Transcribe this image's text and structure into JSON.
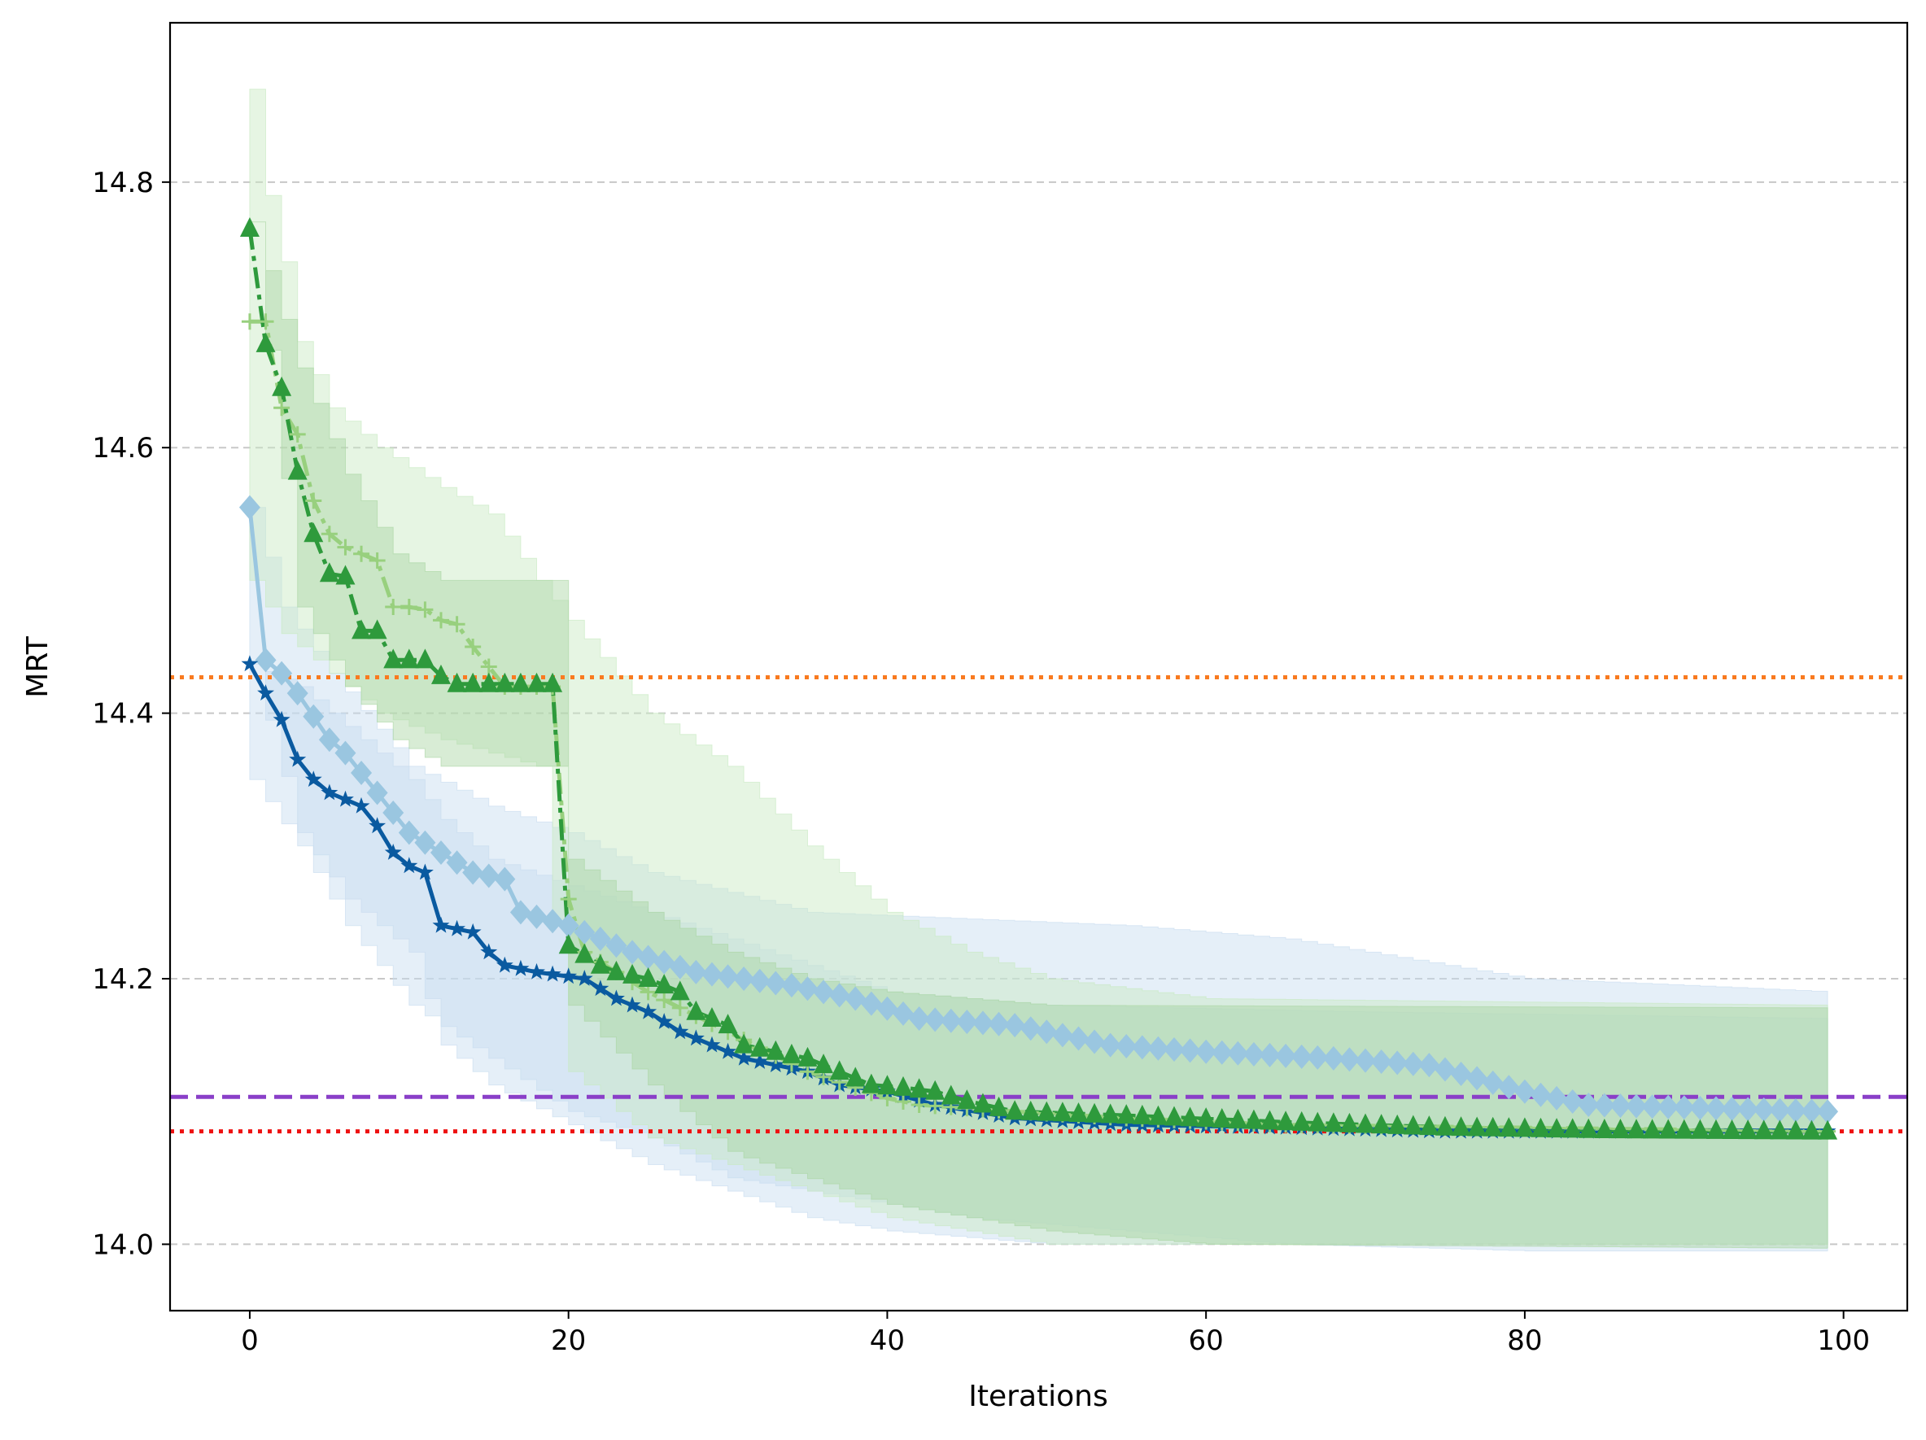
{
  "chart_data": {
    "type": "line",
    "title": "",
    "xlabel": "Iterations",
    "ylabel": "MRT",
    "xlim": [
      -5,
      104
    ],
    "ylim": [
      13.95,
      14.92
    ],
    "xticks": [
      0,
      20,
      40,
      60,
      80,
      100
    ],
    "yticks": [
      14.0,
      14.2,
      14.4,
      14.6,
      14.8
    ],
    "xtick_labels": [
      "0",
      "20",
      "40",
      "60",
      "80",
      "100"
    ],
    "ytick_labels": [
      "14.0",
      "14.2",
      "14.4",
      "14.6",
      "14.8"
    ],
    "grid": "horizontal dashed",
    "reference_lines": [
      {
        "name": "orange-dotted-reference",
        "y": 14.427,
        "color": "#f97a1f",
        "style": "dotted"
      },
      {
        "name": "purple-dashed-reference",
        "y": 14.111,
        "color": "#8a3fc8",
        "style": "dashed"
      },
      {
        "name": "red-dotted-reference",
        "y": 14.085,
        "color": "#ee1111",
        "style": "dotted"
      }
    ],
    "series": [
      {
        "name": "light-blue-diamond-series",
        "color": "#9ac6e0",
        "marker": "diamond",
        "linestyle": "solid",
        "band_color": "#c6dbef",
        "anchors": [
          [
            0,
            14.555
          ],
          [
            1,
            14.44
          ],
          [
            2,
            14.43
          ],
          [
            3,
            14.415
          ],
          [
            5,
            14.38
          ],
          [
            6,
            14.37
          ],
          [
            8,
            14.34
          ],
          [
            10,
            14.31
          ],
          [
            12,
            14.295
          ],
          [
            14,
            14.28
          ],
          [
            16,
            14.275
          ],
          [
            17,
            14.25
          ],
          [
            20,
            14.24
          ],
          [
            24,
            14.22
          ],
          [
            28,
            14.205
          ],
          [
            34,
            14.195
          ],
          [
            38,
            14.185
          ],
          [
            42,
            14.17
          ],
          [
            48,
            14.165
          ],
          [
            54,
            14.15
          ],
          [
            60,
            14.145
          ],
          [
            68,
            14.14
          ],
          [
            74,
            14.135
          ],
          [
            80,
            14.115
          ],
          [
            84,
            14.105
          ],
          [
            90,
            14.103
          ],
          [
            99,
            14.1
          ]
        ],
        "upper": [
          [
            0,
            14.555
          ],
          [
            2,
            14.48
          ],
          [
            5,
            14.43
          ],
          [
            10,
            14.36
          ],
          [
            15,
            14.33
          ],
          [
            20,
            14.31
          ],
          [
            25,
            14.28
          ],
          [
            30,
            14.265
          ],
          [
            35,
            14.25
          ],
          [
            45,
            14.245
          ],
          [
            55,
            14.24
          ],
          [
            65,
            14.23
          ],
          [
            80,
            14.2
          ],
          [
            90,
            14.195
          ],
          [
            99,
            14.19
          ]
        ],
        "lower": [
          [
            0,
            14.35
          ],
          [
            3,
            14.3
          ],
          [
            6,
            14.24
          ],
          [
            10,
            14.18
          ],
          [
            15,
            14.14
          ],
          [
            20,
            14.1
          ],
          [
            25,
            14.08
          ],
          [
            30,
            14.05
          ],
          [
            35,
            14.04
          ],
          [
            45,
            14.02
          ],
          [
            55,
            14.01
          ],
          [
            65,
            14.0
          ],
          [
            80,
            13.995
          ],
          [
            99,
            13.995
          ]
        ]
      },
      {
        "name": "dark-blue-star-series",
        "color": "#0a5aa0",
        "marker": "star",
        "linestyle": "solid",
        "band_color": "#c6dbef",
        "anchors": [
          [
            0,
            14.437
          ],
          [
            1,
            14.415
          ],
          [
            2,
            14.395
          ],
          [
            3,
            14.365
          ],
          [
            4,
            14.35
          ],
          [
            5,
            14.34
          ],
          [
            6,
            14.335
          ],
          [
            7,
            14.33
          ],
          [
            8,
            14.315
          ],
          [
            9,
            14.295
          ],
          [
            10,
            14.285
          ],
          [
            11,
            14.28
          ],
          [
            12,
            14.24
          ],
          [
            14,
            14.235
          ],
          [
            15,
            14.22
          ],
          [
            16,
            14.21
          ],
          [
            18,
            14.205
          ],
          [
            21,
            14.2
          ],
          [
            23,
            14.185
          ],
          [
            25,
            14.175
          ],
          [
            27,
            14.16
          ],
          [
            29,
            14.15
          ],
          [
            31,
            14.14
          ],
          [
            33,
            14.135
          ],
          [
            35,
            14.13
          ],
          [
            37,
            14.12
          ],
          [
            40,
            14.115
          ],
          [
            43,
            14.105
          ],
          [
            48,
            14.095
          ],
          [
            55,
            14.09
          ],
          [
            65,
            14.088
          ],
          [
            75,
            14.085
          ],
          [
            99,
            14.085
          ]
        ],
        "upper": [
          [
            0,
            14.437
          ],
          [
            3,
            14.42
          ],
          [
            6,
            14.39
          ],
          [
            10,
            14.35
          ],
          [
            12,
            14.32
          ],
          [
            15,
            14.29
          ],
          [
            20,
            14.27
          ],
          [
            25,
            14.25
          ],
          [
            30,
            14.23
          ],
          [
            35,
            14.21
          ],
          [
            40,
            14.19
          ],
          [
            50,
            14.18
          ],
          [
            70,
            14.175
          ],
          [
            99,
            14.17
          ]
        ],
        "lower": [
          [
            0,
            14.437
          ],
          [
            3,
            14.31
          ],
          [
            6,
            14.26
          ],
          [
            10,
            14.22
          ],
          [
            12,
            14.15
          ],
          [
            15,
            14.12
          ],
          [
            20,
            14.09
          ],
          [
            25,
            14.06
          ],
          [
            30,
            14.04
          ],
          [
            35,
            14.02
          ],
          [
            40,
            14.01
          ],
          [
            50,
            14.0
          ],
          [
            99,
            14.0
          ]
        ]
      },
      {
        "name": "light-green-plus-series",
        "color": "#98d07e",
        "marker": "plus",
        "linestyle": "dashdot",
        "band_color": "#c7e9c0",
        "anchors": [
          [
            0,
            14.695
          ],
          [
            1,
            14.695
          ],
          [
            2,
            14.63
          ],
          [
            3,
            14.61
          ],
          [
            4,
            14.56
          ],
          [
            5,
            14.535
          ],
          [
            6,
            14.525
          ],
          [
            7,
            14.52
          ],
          [
            8,
            14.515
          ],
          [
            9,
            14.48
          ],
          [
            10,
            14.48
          ],
          [
            11,
            14.478
          ],
          [
            12,
            14.47
          ],
          [
            13,
            14.467
          ],
          [
            14,
            14.45
          ],
          [
            15,
            14.435
          ],
          [
            16,
            14.42
          ],
          [
            17,
            14.42
          ],
          [
            18,
            14.42
          ],
          [
            19,
            14.42
          ],
          [
            20,
            14.26
          ],
          [
            21,
            14.22
          ],
          [
            25,
            14.19
          ],
          [
            30,
            14.16
          ],
          [
            35,
            14.13
          ],
          [
            40,
            14.11
          ],
          [
            42,
            14.105
          ],
          [
            48,
            14.1
          ],
          [
            55,
            14.095
          ],
          [
            65,
            14.09
          ],
          [
            99,
            14.085
          ]
        ],
        "upper": [
          [
            0,
            14.87
          ],
          [
            1,
            14.79
          ],
          [
            2,
            14.74
          ],
          [
            3,
            14.68
          ],
          [
            5,
            14.63
          ],
          [
            8,
            14.6
          ],
          [
            12,
            14.57
          ],
          [
            15,
            14.55
          ],
          [
            18,
            14.5
          ],
          [
            20,
            14.47
          ],
          [
            25,
            14.4
          ],
          [
            30,
            14.36
          ],
          [
            35,
            14.3
          ],
          [
            40,
            14.25
          ],
          [
            45,
            14.22
          ],
          [
            50,
            14.2
          ],
          [
            60,
            14.185
          ],
          [
            99,
            14.18
          ]
        ],
        "lower": [
          [
            0,
            14.5
          ],
          [
            2,
            14.46
          ],
          [
            5,
            14.43
          ],
          [
            8,
            14.4
          ],
          [
            12,
            14.38
          ],
          [
            15,
            14.37
          ],
          [
            18,
            14.36
          ],
          [
            20,
            14.13
          ],
          [
            25,
            14.08
          ],
          [
            30,
            14.06
          ],
          [
            35,
            14.04
          ],
          [
            40,
            14.02
          ],
          [
            50,
            14.0
          ],
          [
            99,
            14.0
          ]
        ]
      },
      {
        "name": "green-triangle-series",
        "color": "#2e9a3c",
        "marker": "triangle",
        "linestyle": "dashdot",
        "band_color": "#a8d5a2",
        "anchors": [
          [
            0,
            14.765
          ],
          [
            1,
            14.678
          ],
          [
            2,
            14.645
          ],
          [
            3,
            14.582
          ],
          [
            4,
            14.535
          ],
          [
            5,
            14.505
          ],
          [
            6,
            14.503
          ],
          [
            7,
            14.462
          ],
          [
            8,
            14.462
          ],
          [
            9,
            14.44
          ],
          [
            10,
            14.44
          ],
          [
            11,
            14.44
          ],
          [
            12,
            14.428
          ],
          [
            13,
            14.422
          ],
          [
            14,
            14.422
          ],
          [
            15,
            14.422
          ],
          [
            16,
            14.422
          ],
          [
            17,
            14.422
          ],
          [
            18,
            14.422
          ],
          [
            19,
            14.422
          ],
          [
            20,
            14.225
          ],
          [
            21,
            14.218
          ],
          [
            22,
            14.21
          ],
          [
            23,
            14.205
          ],
          [
            25,
            14.2
          ],
          [
            27,
            14.19
          ],
          [
            28,
            14.175
          ],
          [
            30,
            14.165
          ],
          [
            31,
            14.15
          ],
          [
            33,
            14.145
          ],
          [
            35,
            14.14
          ],
          [
            37,
            14.13
          ],
          [
            39,
            14.12
          ],
          [
            41,
            14.118
          ],
          [
            43,
            14.115
          ],
          [
            45,
            14.108
          ],
          [
            48,
            14.1
          ],
          [
            55,
            14.097
          ],
          [
            65,
            14.092
          ],
          [
            75,
            14.088
          ],
          [
            85,
            14.086
          ],
          [
            99,
            14.085
          ]
        ],
        "upper": [
          [
            0,
            14.77
          ],
          [
            3,
            14.66
          ],
          [
            6,
            14.58
          ],
          [
            9,
            14.52
          ],
          [
            12,
            14.5
          ],
          [
            19,
            14.5
          ],
          [
            20,
            14.29
          ],
          [
            25,
            14.25
          ],
          [
            30,
            14.22
          ],
          [
            35,
            14.2
          ],
          [
            40,
            14.19
          ],
          [
            50,
            14.18
          ],
          [
            99,
            14.178
          ]
        ],
        "lower": [
          [
            0,
            14.77
          ],
          [
            3,
            14.48
          ],
          [
            6,
            14.42
          ],
          [
            9,
            14.38
          ],
          [
            12,
            14.36
          ],
          [
            19,
            14.36
          ],
          [
            20,
            14.18
          ],
          [
            25,
            14.12
          ],
          [
            30,
            14.07
          ],
          [
            31,
            14.065
          ],
          [
            40,
            14.03
          ],
          [
            50,
            14.01
          ],
          [
            60,
            14.0
          ],
          [
            99,
            13.997
          ]
        ]
      }
    ]
  }
}
